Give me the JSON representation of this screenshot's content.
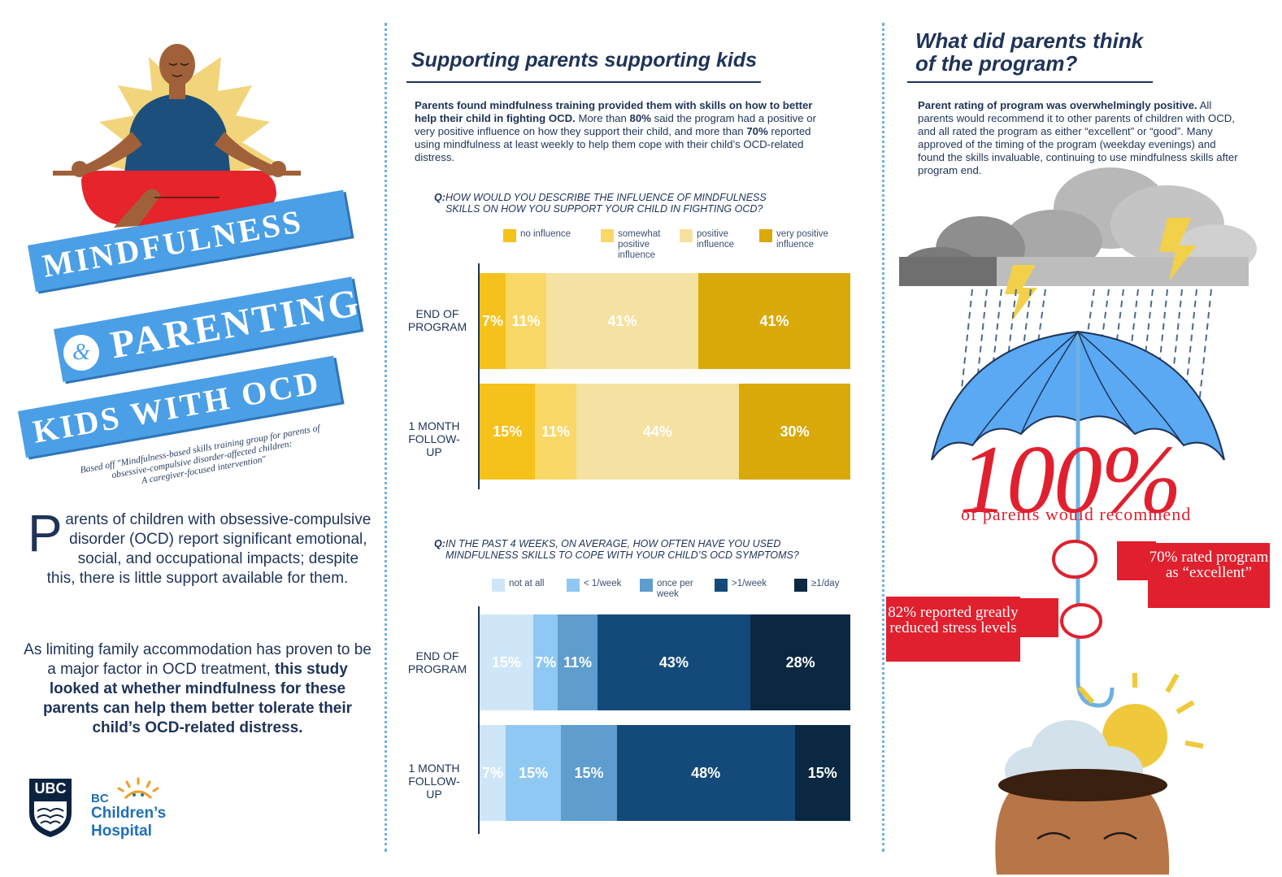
{
  "banner": {
    "line1": "MINDFULNESS",
    "amp": "&",
    "line2": "PARENTING",
    "line3": "KIDS WITH OCD",
    "citation_line1": "Based off \"Mindfulness-based skills training group for parents of",
    "citation_line2": "obsessive-compulsive disorder-affected children:",
    "citation_line3": "A caregiver-focused intervention\""
  },
  "intro": {
    "dropcap": "P",
    "p1_rest": "arents of children with obsessive-compulsive disorder (OCD) report significant emotional, social, and occupational impacts; despite this, there is little support available for them.",
    "p2_plain": "As limiting family accommodation has proven to be a major factor in OCD treatment, ",
    "p2_bold": "this study looked at whether mindfulness for these parents can help them better tolerate their child’s OCD-related distress."
  },
  "logos": {
    "ubc": "UBC",
    "bc": "BC",
    "childrens": "Children’s",
    "hospital": "Hospital"
  },
  "middle": {
    "title": "Supporting parents supporting kids",
    "p_bold": "Parents found mindfulness training provided them with skills on how to better help their child in fighting OCD.",
    "p_a": " More than ",
    "p_80": "80%",
    "p_b": " said the program had a positive or very positive influence on how they support their child, and more than ",
    "p_70": "70%",
    "p_c": " reported using mindfulness at least weekly to help them cope with their child’s OCD-related distress."
  },
  "chart_data": [
    {
      "type": "bar",
      "orientation": "horizontal-stacked-100",
      "question_prefix": "Q:",
      "question": "HOW WOULD YOU DESCRIBE THE INFLUENCE  OF MINDFULNESS SKILLS ON HOW YOU SUPPORT YOUR CHILD IN FIGHTING OCD?",
      "categories": [
        "END OF PROGRAM",
        "1 MONTH FOLLOW-UP"
      ],
      "legend_position": "top",
      "series": [
        {
          "name": "no influence",
          "color": "#f5c21b",
          "values": [
            7,
            15
          ]
        },
        {
          "name": "somewhat positive influence",
          "color": "#fad867",
          "values": [
            11,
            11
          ]
        },
        {
          "name": "positive influence",
          "color": "#f5e2a2",
          "values": [
            41,
            44
          ]
        },
        {
          "name": "very positive influence",
          "color": "#d9a90a",
          "values": [
            41,
            30
          ]
        }
      ]
    },
    {
      "type": "bar",
      "orientation": "horizontal-stacked-100",
      "question_prefix": "Q:",
      "question": "IN THE PAST 4 WEEKS, ON AVERAGE, HOW OFTEN HAVE YOU USED MINDFULNESS SKILLS TO COPE WITH YOUR CHILD’S OCD SYMPTOMS?",
      "categories": [
        "END OF PROGRAM",
        "1 MONTH FOLLOW-UP"
      ],
      "legend_position": "top",
      "series": [
        {
          "name": "not at all",
          "color": "#cfe6f8",
          "values": [
            15,
            7
          ]
        },
        {
          "name": "< 1/week",
          "color": "#8fc8f2",
          "values": [
            7,
            15
          ]
        },
        {
          "name": "once per week",
          "color": "#5e9dce",
          "values": [
            11,
            15
          ]
        },
        {
          "name": ">1/week",
          "color": "#134a79",
          "values": [
            43,
            48
          ]
        },
        {
          "name": "≥1/day",
          "color": "#0b2842",
          "values": [
            28,
            15
          ]
        }
      ]
    }
  ],
  "right": {
    "title_line1": "What did parents think",
    "title_line2": "of the program?",
    "p_bold": "Parent rating of program was overwhelmingly positive.",
    "p_rest": " All parents would recommend it to other parents of children with OCD, and all rated the program as either “excellent” or “good”. Many approved of the timing of the program (weekday evenings) and found the skills invaluable, continuing to use mindfulness skills after program end.",
    "big_stat": "100%",
    "big_caption": "of parents would recommend",
    "flag_right": "70% rated program as “excellent”",
    "flag_left": "82% reported greatly reduced stress levels"
  },
  "colors": {
    "navy": "#1e3358",
    "banner_blue": "#4b9fe6",
    "accent_red": "#e0202e",
    "divider": "#6fb0e0"
  }
}
